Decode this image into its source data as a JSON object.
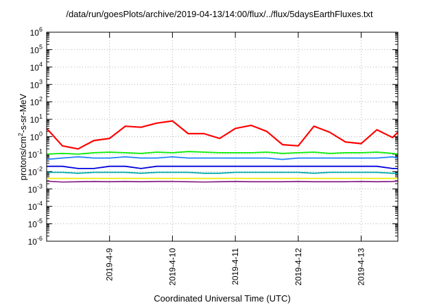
{
  "chart_data": {
    "type": "line",
    "title": "/data/run/goesPlots/archive/2019-04-13/14:00/flux/../flux/5daysEarthFluxes.txt",
    "xlabel": "Coordinated Universal Time (UTC)",
    "ylabel_parts": [
      "protons/cm",
      "2",
      "-s-sr-MeV"
    ],
    "y_scale": "log",
    "ylim": [
      1e-06,
      1000000.0
    ],
    "y_ticks": [
      {
        "base": "10",
        "exp": "-6",
        "value": 1e-06
      },
      {
        "base": "10",
        "exp": "-5",
        "value": 1e-05
      },
      {
        "base": "10",
        "exp": "-4",
        "value": 0.0001
      },
      {
        "base": "10",
        "exp": "-3",
        "value": 0.001
      },
      {
        "base": "10",
        "exp": "-2",
        "value": 0.01
      },
      {
        "base": "10",
        "exp": "-1",
        "value": 0.1
      },
      {
        "base": "10",
        "exp": "0",
        "value": 1
      },
      {
        "base": "10",
        "exp": "1",
        "value": 10
      },
      {
        "base": "10",
        "exp": "2",
        "value": 100
      },
      {
        "base": "10",
        "exp": "3",
        "value": 1000
      },
      {
        "base": "10",
        "exp": "4",
        "value": 10000
      },
      {
        "base": "10",
        "exp": "5",
        "value": 100000
      },
      {
        "base": "10",
        "exp": "6",
        "value": 1000000
      }
    ],
    "xlim": [
      "2019-04-08 00:00",
      "2019-04-13 14:00"
    ],
    "x_ticks": [
      "2019-4-9",
      "2019-4-10",
      "2019-4-11",
      "2019-4-12",
      "2019-4-13"
    ],
    "grid": true,
    "x": [
      "2019-04-08 00:00",
      "2019-04-08 06:00",
      "2019-04-08 12:00",
      "2019-04-08 18:00",
      "2019-04-09 00:00",
      "2019-04-09 06:00",
      "2019-04-09 12:00",
      "2019-04-09 18:00",
      "2019-04-10 00:00",
      "2019-04-10 06:00",
      "2019-04-10 12:00",
      "2019-04-10 18:00",
      "2019-04-11 00:00",
      "2019-04-11 06:00",
      "2019-04-11 12:00",
      "2019-04-11 18:00",
      "2019-04-12 00:00",
      "2019-04-12 06:00",
      "2019-04-12 12:00",
      "2019-04-12 18:00",
      "2019-04-13 00:00",
      "2019-04-13 06:00",
      "2019-04-13 12:00",
      "2019-04-13 14:00"
    ],
    "series": [
      {
        "color": "#ff0000",
        "values": [
          3.0,
          0.3,
          0.2,
          0.6,
          0.8,
          4.0,
          3.5,
          6.0,
          8.0,
          1.5,
          1.5,
          0.8,
          3.0,
          4.5,
          2.0,
          0.35,
          0.3,
          4.0,
          1.8,
          0.5,
          0.4,
          2.5,
          0.9,
          1.8
        ]
      },
      {
        "color": "#00ee00",
        "values": [
          0.1,
          0.11,
          0.1,
          0.12,
          0.13,
          0.12,
          0.11,
          0.13,
          0.12,
          0.14,
          0.13,
          0.12,
          0.12,
          0.12,
          0.13,
          0.11,
          0.12,
          0.13,
          0.11,
          0.12,
          0.12,
          0.13,
          0.11,
          0.1
        ]
      },
      {
        "color": "#1e7fff",
        "values": [
          0.05,
          0.06,
          0.07,
          0.06,
          0.06,
          0.07,
          0.06,
          0.06,
          0.07,
          0.06,
          0.06,
          0.06,
          0.06,
          0.06,
          0.06,
          0.05,
          0.06,
          0.06,
          0.06,
          0.06,
          0.06,
          0.06,
          0.07,
          0.06
        ]
      },
      {
        "color": "#0000dd",
        "values": [
          0.02,
          0.02,
          0.015,
          0.015,
          0.02,
          0.02,
          0.015,
          0.02,
          0.02,
          0.02,
          0.02,
          0.02,
          0.02,
          0.02,
          0.02,
          0.02,
          0.02,
          0.02,
          0.02,
          0.02,
          0.02,
          0.02,
          0.015,
          0.015
        ]
      },
      {
        "color": "#00aaaa",
        "values": [
          0.009,
          0.009,
          0.008,
          0.009,
          0.009,
          0.009,
          0.008,
          0.009,
          0.009,
          0.009,
          0.008,
          0.008,
          0.009,
          0.009,
          0.009,
          0.009,
          0.009,
          0.008,
          0.009,
          0.009,
          0.009,
          0.009,
          0.008,
          0.008
        ]
      },
      {
        "color": "#eeee00",
        "values": [
          0.004,
          0.004,
          0.004,
          0.004,
          0.004,
          0.004,
          0.004,
          0.004,
          0.004,
          0.004,
          0.004,
          0.004,
          0.004,
          0.004,
          0.004,
          0.004,
          0.004,
          0.004,
          0.004,
          0.004,
          0.004,
          0.004,
          0.004,
          0.004
        ]
      },
      {
        "color": "#8b2d8b",
        "values": [
          0.0028,
          0.0025,
          0.0026,
          0.0027,
          0.0026,
          0.0027,
          0.0026,
          0.0027,
          0.0027,
          0.0026,
          0.0025,
          0.0026,
          0.0027,
          0.0026,
          0.0026,
          0.0026,
          0.0027,
          0.0026,
          0.0026,
          0.0026,
          0.0027,
          0.0026,
          0.0027,
          0.0028
        ]
      }
    ]
  }
}
